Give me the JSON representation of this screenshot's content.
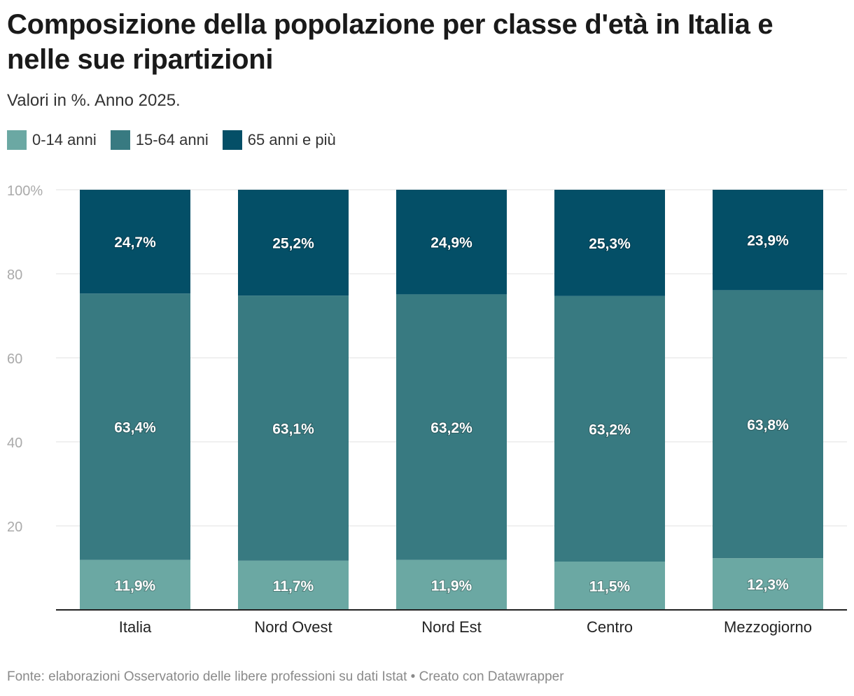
{
  "chart_data": {
    "type": "bar",
    "stacked": true,
    "title": "Composizione della popolazione per classe d'età in Italia e nelle sue ripartizioni",
    "subtitle": "Valori in %. Anno 2025.",
    "categories": [
      "Italia",
      "Nord Ovest",
      "Nord Est",
      "Centro",
      "Mezzogiorno"
    ],
    "series": [
      {
        "name": "0-14 anni",
        "color": "#6ba8a3",
        "values": [
          11.9,
          11.7,
          11.9,
          11.5,
          12.3
        ],
        "labels": [
          "11,9%",
          "11,7%",
          "11,9%",
          "11,5%",
          "12,3%"
        ]
      },
      {
        "name": "15-64 anni",
        "color": "#387a81",
        "values": [
          63.4,
          63.1,
          63.2,
          63.2,
          63.8
        ],
        "labels": [
          "63,4%",
          "63,1%",
          "63,2%",
          "63,2%",
          "63,8%"
        ]
      },
      {
        "name": "65 anni e più",
        "color": "#044f67",
        "values": [
          24.7,
          25.2,
          24.9,
          25.3,
          23.9
        ],
        "labels": [
          "24,7%",
          "25,2%",
          "24,9%",
          "25,3%",
          "23,9%"
        ]
      }
    ],
    "ylim": [
      0,
      100
    ],
    "yticks": [
      20,
      40,
      60,
      80,
      100
    ],
    "ytick_labels": [
      "20",
      "40",
      "60",
      "80",
      "100%"
    ],
    "grid": true,
    "legend": "top-left"
  },
  "footer": "Fonte: elaborazioni Osservatorio delle libere professioni su dati Istat • Creato con Datawrapper"
}
